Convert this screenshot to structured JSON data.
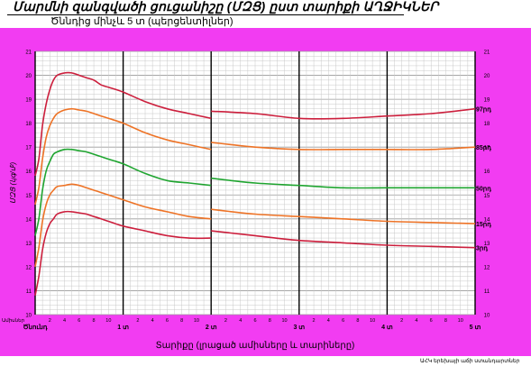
{
  "header": {
    "title": "Մարմնի զանգվածի ցուցանիշը (ՄԶՑ) ըստ տարիքի  ԱՂՋԻԿՆԵՐ",
    "subtitle": "Ծննդից մինչև 5 տ (պերցենտիլներ)"
  },
  "footnote": "ԱՀԿ երեխայի աճի ստանդարտներ",
  "colors": {
    "frame": "#f23cf2",
    "plot_bg": "#ffffff",
    "grid": "#c8c8c8",
    "grid_major": "#000000",
    "p3": "#cc1e3c",
    "p15": "#ee7326",
    "p50": "#1fa530",
    "p85": "#ee7326",
    "p97": "#cc1e3c"
  },
  "chart_data": {
    "type": "line",
    "title": "Մարմնի զանգվածի ցուցանիշը (ՄԶՑ) ըստ տարիքի  ԱՂՋԻԿՆԵՐ",
    "subtitle": "Ծննդից մինչև 5 տ (պերցենտիլներ)",
    "xlabel": "Տարիքը (լրացած ամիսները և տարիները)",
    "ylabel": "ՄԶՑ (կգ/մ²)",
    "ylim": [
      10,
      21
    ],
    "xlim": [
      0,
      60
    ],
    "y_ticks": [
      10,
      11,
      12,
      13,
      14,
      15,
      16,
      17,
      18,
      19,
      20,
      21
    ],
    "x_row_label": "Ամիսներ",
    "x_minor_tick_labels": [
      "2",
      "4",
      "6",
      "8",
      "10"
    ],
    "x_major_tick_labels": [
      "Ծնունդ",
      "1 տ",
      "2 տ",
      "3 տ",
      "4 տ",
      "5 տ"
    ],
    "grid": true,
    "legend": "right-side labels",
    "series": [
      {
        "name": "97րդ",
        "x": [
          0,
          0.5,
          1,
          1.5,
          2,
          2.5,
          3,
          4,
          5,
          6,
          7,
          8,
          9,
          10,
          12,
          15,
          18,
          21,
          24,
          24,
          30,
          36,
          42,
          48,
          54,
          60
        ],
        "y": [
          15.8,
          16.5,
          17.9,
          18.8,
          19.4,
          19.8,
          20.0,
          20.1,
          20.1,
          20.0,
          19.9,
          19.8,
          19.6,
          19.5,
          19.3,
          18.9,
          18.6,
          18.4,
          18.2,
          18.5,
          18.4,
          18.2,
          18.2,
          18.3,
          18.4,
          18.6
        ]
      },
      {
        "name": "85րդ",
        "x": [
          0,
          0.5,
          1,
          1.5,
          2,
          2.5,
          3,
          4,
          5,
          6,
          7,
          8,
          9,
          10,
          12,
          15,
          18,
          21,
          24,
          24,
          30,
          36,
          42,
          48,
          54,
          60
        ],
        "y": [
          14.6,
          15.3,
          16.5,
          17.4,
          17.9,
          18.2,
          18.4,
          18.55,
          18.6,
          18.55,
          18.5,
          18.4,
          18.3,
          18.2,
          18.0,
          17.6,
          17.3,
          17.1,
          16.9,
          17.2,
          17.0,
          16.9,
          16.9,
          16.9,
          16.9,
          17.0
        ]
      },
      {
        "name": "50րդ",
        "x": [
          0,
          0.5,
          1,
          1.5,
          2,
          2.5,
          3,
          4,
          5,
          6,
          7,
          8,
          9,
          10,
          12,
          15,
          18,
          21,
          24,
          24,
          30,
          36,
          42,
          48,
          54,
          60
        ],
        "y": [
          13.3,
          14.0,
          15.2,
          16.0,
          16.4,
          16.7,
          16.8,
          16.9,
          16.9,
          16.85,
          16.8,
          16.7,
          16.6,
          16.5,
          16.3,
          15.9,
          15.6,
          15.5,
          15.4,
          15.7,
          15.5,
          15.4,
          15.3,
          15.3,
          15.3,
          15.3
        ]
      },
      {
        "name": "15րդ",
        "x": [
          0,
          0.5,
          1,
          1.5,
          2,
          2.5,
          3,
          4,
          5,
          6,
          7,
          8,
          9,
          10,
          12,
          15,
          18,
          21,
          24,
          24,
          30,
          36,
          42,
          48,
          54,
          60
        ],
        "y": [
          12.0,
          12.8,
          13.9,
          14.6,
          15.0,
          15.2,
          15.35,
          15.4,
          15.45,
          15.4,
          15.3,
          15.2,
          15.1,
          15.0,
          14.8,
          14.5,
          14.3,
          14.1,
          14.0,
          14.4,
          14.2,
          14.1,
          14.0,
          13.9,
          13.85,
          13.8
        ]
      },
      {
        "name": "3րդ",
        "x": [
          0,
          0.5,
          1,
          1.5,
          2,
          2.5,
          3,
          4,
          5,
          6,
          7,
          8,
          9,
          10,
          12,
          15,
          18,
          21,
          24,
          24,
          30,
          36,
          42,
          48,
          54,
          60
        ],
        "y": [
          10.8,
          11.6,
          12.7,
          13.4,
          13.8,
          14.0,
          14.2,
          14.3,
          14.3,
          14.25,
          14.2,
          14.1,
          14.0,
          13.9,
          13.7,
          13.5,
          13.3,
          13.2,
          13.2,
          13.5,
          13.3,
          13.1,
          13.0,
          12.9,
          12.85,
          12.8
        ]
      }
    ]
  }
}
